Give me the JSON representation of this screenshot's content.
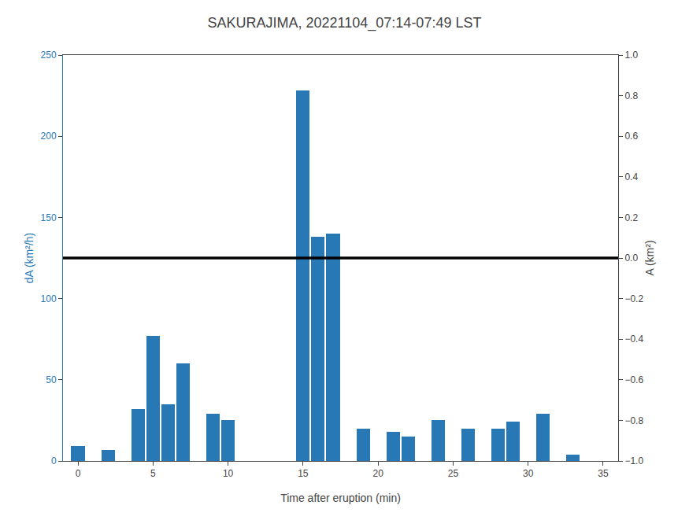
{
  "chart_data": {
    "type": "bar",
    "title": "SAKURAJIMA, 20221104_07:14-07:49 LST",
    "xlabel": "Time after eruption (min)",
    "ylabel": "dA (km²/h)",
    "y2label": "A (km²)",
    "x": [
      0,
      1,
      2,
      3,
      4,
      5,
      6,
      7,
      8,
      9,
      10,
      11,
      12,
      13,
      14,
      15,
      16,
      17,
      18,
      19,
      20,
      21,
      22,
      23,
      24,
      25,
      26,
      27,
      28,
      29,
      30,
      31,
      32,
      33,
      34
    ],
    "values": [
      9,
      0,
      7,
      0,
      32,
      77,
      35,
      60,
      0,
      29,
      25,
      0,
      0,
      0,
      0,
      228,
      138,
      140,
      0,
      20,
      0,
      18,
      15,
      0,
      25,
      0,
      20,
      0,
      20,
      24,
      0,
      29,
      0,
      4,
      0
    ],
    "color": "#2878b5",
    "hline": 125,
    "xlim": [
      -1,
      36
    ],
    "xticks": [
      0,
      5,
      10,
      15,
      20,
      25,
      30,
      35
    ],
    "ylim": [
      0,
      250
    ],
    "yticks": [
      0,
      50,
      100,
      150,
      200,
      250
    ],
    "y2lim": [
      -1,
      1
    ],
    "y2ticks": [
      {
        "value": -1,
        "label": "−1.0"
      },
      {
        "value": -0.8,
        "label": "−0.8"
      },
      {
        "value": -0.6,
        "label": "−0.6"
      },
      {
        "value": -0.4,
        "label": "−0.4"
      },
      {
        "value": -0.2,
        "label": "−0.2"
      },
      {
        "value": 0,
        "label": "0.0"
      },
      0.2,
      0.4,
      0.6,
      0.8,
      {
        "value": 1.0,
        "label": "1.0"
      }
    ],
    "grid": false
  }
}
